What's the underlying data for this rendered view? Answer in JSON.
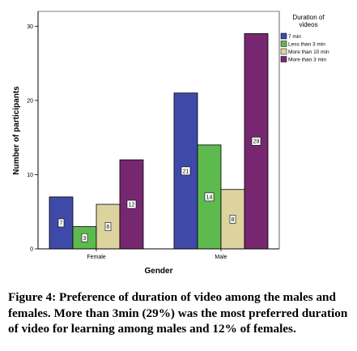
{
  "chart_data": {
    "type": "bar",
    "title": "",
    "xlabel": "Gender",
    "ylabel": "Number of participants",
    "categories": [
      "Female",
      "Male"
    ],
    "series": [
      {
        "name": "7 min",
        "color": "#3f4aa8",
        "values": [
          7,
          21
        ]
      },
      {
        "name": "Less than 3 min",
        "color": "#5cba4e",
        "values": [
          3,
          14
        ]
      },
      {
        "name": "More than 10 min",
        "color": "#ddd39f",
        "values": [
          6,
          8
        ]
      },
      {
        "name": "More than 3 min",
        "color": "#77276f",
        "values": [
          12,
          29
        ]
      }
    ],
    "ylim": [
      0,
      32
    ],
    "yticks": [
      0,
      10,
      20,
      30
    ],
    "legend_title": "Duration of videos",
    "legend_position": "top-right",
    "data_labels": true,
    "grid": false
  },
  "caption": "Figure 4: Preference of duration of video among the males and females. More than 3min (29%) was the most preferred duration of video for learning among males and 12% of females."
}
